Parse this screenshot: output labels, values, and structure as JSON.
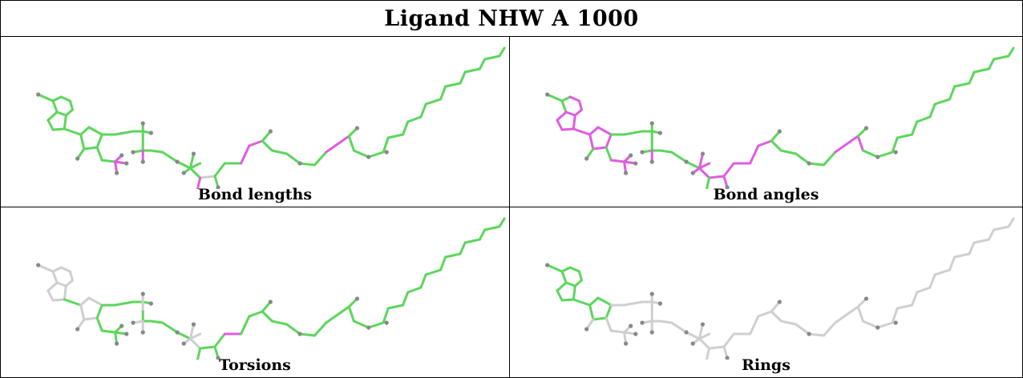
{
  "title": "Ligand NHW A 1000",
  "panels": [
    {
      "label": "Bond lengths"
    },
    {
      "label": "Bond angles"
    },
    {
      "label": "Torsions"
    },
    {
      "label": "Rings"
    }
  ],
  "colors": {
    "grey": "#cfcfcf",
    "green": "#5cd65c",
    "magenta": "#e05ce0",
    "atom": "#888888",
    "border": "#000000"
  }
}
